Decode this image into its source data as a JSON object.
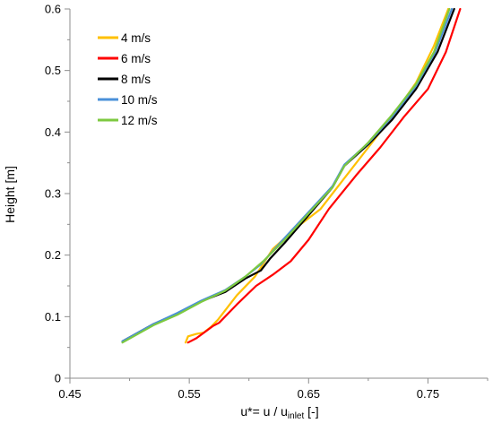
{
  "chart_data": {
    "type": "line",
    "xlabel": {
      "main": "u*= u / u",
      "sub": "inlet",
      "tail": " [-]"
    },
    "ylabel": "Height  [m]",
    "xlim": [
      0.45,
      0.8
    ],
    "ylim": [
      0,
      0.6
    ],
    "xticks": [
      0.45,
      0.55,
      0.65,
      0.75
    ],
    "xtick_labels": [
      "0.45",
      "0.55",
      "0.65",
      "0.75"
    ],
    "yticks": [
      0,
      0.1,
      0.2,
      0.3,
      0.4,
      0.5,
      0.6
    ],
    "ytick_labels": [
      "0",
      "0.1",
      "0.2",
      "0.3",
      "0.4",
      "0.5",
      "0.6"
    ],
    "grid": false,
    "legend_position": "top-left",
    "series": [
      {
        "name": "4 m/s",
        "color": "#FFC000",
        "points": [
          [
            0.547,
            0.058
          ],
          [
            0.549,
            0.068
          ],
          [
            0.556,
            0.072
          ],
          [
            0.562,
            0.074
          ],
          [
            0.568,
            0.083
          ],
          [
            0.574,
            0.095
          ],
          [
            0.59,
            0.135
          ],
          [
            0.605,
            0.165
          ],
          [
            0.62,
            0.21
          ],
          [
            0.64,
            0.245
          ],
          [
            0.66,
            0.275
          ],
          [
            0.68,
            0.325
          ],
          [
            0.7,
            0.375
          ],
          [
            0.72,
            0.425
          ],
          [
            0.74,
            0.48
          ],
          [
            0.755,
            0.54
          ],
          [
            0.767,
            0.6
          ]
        ]
      },
      {
        "name": "6 m/s",
        "color": "#FF0000",
        "points": [
          [
            0.549,
            0.058
          ],
          [
            0.556,
            0.065
          ],
          [
            0.563,
            0.075
          ],
          [
            0.57,
            0.085
          ],
          [
            0.575,
            0.09
          ],
          [
            0.59,
            0.12
          ],
          [
            0.606,
            0.15
          ],
          [
            0.62,
            0.168
          ],
          [
            0.635,
            0.19
          ],
          [
            0.65,
            0.225
          ],
          [
            0.667,
            0.275
          ],
          [
            0.69,
            0.33
          ],
          [
            0.71,
            0.375
          ],
          [
            0.73,
            0.425
          ],
          [
            0.75,
            0.47
          ],
          [
            0.765,
            0.53
          ],
          [
            0.777,
            0.6
          ]
        ]
      },
      {
        "name": "8 m/s",
        "color": "#000000",
        "points": [
          [
            0.494,
            0.06
          ],
          [
            0.52,
            0.088
          ],
          [
            0.54,
            0.105
          ],
          [
            0.56,
            0.125
          ],
          [
            0.58,
            0.14
          ],
          [
            0.597,
            0.162
          ],
          [
            0.61,
            0.175
          ],
          [
            0.618,
            0.195
          ],
          [
            0.63,
            0.22
          ],
          [
            0.65,
            0.265
          ],
          [
            0.67,
            0.31
          ],
          [
            0.68,
            0.345
          ],
          [
            0.7,
            0.38
          ],
          [
            0.72,
            0.42
          ],
          [
            0.74,
            0.47
          ],
          [
            0.758,
            0.53
          ],
          [
            0.772,
            0.6
          ]
        ]
      },
      {
        "name": "10 m/s",
        "color": "#4A90D9",
        "points": [
          [
            0.494,
            0.06
          ],
          [
            0.52,
            0.088
          ],
          [
            0.54,
            0.106
          ],
          [
            0.56,
            0.126
          ],
          [
            0.58,
            0.143
          ],
          [
            0.597,
            0.165
          ],
          [
            0.61,
            0.185
          ],
          [
            0.63,
            0.228
          ],
          [
            0.65,
            0.27
          ],
          [
            0.67,
            0.312
          ],
          [
            0.68,
            0.347
          ],
          [
            0.7,
            0.382
          ],
          [
            0.72,
            0.425
          ],
          [
            0.74,
            0.475
          ],
          [
            0.756,
            0.53
          ],
          [
            0.77,
            0.6
          ]
        ]
      },
      {
        "name": "12 m/s",
        "color": "#7DC940",
        "points": [
          [
            0.494,
            0.058
          ],
          [
            0.52,
            0.086
          ],
          [
            0.54,
            0.103
          ],
          [
            0.56,
            0.124
          ],
          [
            0.58,
            0.142
          ],
          [
            0.597,
            0.165
          ],
          [
            0.612,
            0.19
          ],
          [
            0.63,
            0.225
          ],
          [
            0.65,
            0.268
          ],
          [
            0.67,
            0.31
          ],
          [
            0.68,
            0.345
          ],
          [
            0.7,
            0.383
          ],
          [
            0.72,
            0.428
          ],
          [
            0.74,
            0.478
          ],
          [
            0.755,
            0.53
          ],
          [
            0.768,
            0.6
          ]
        ]
      }
    ]
  }
}
